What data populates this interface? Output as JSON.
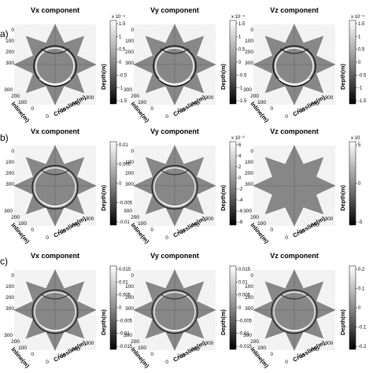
{
  "figure": {
    "rows": [
      {
        "label": "a)",
        "panels": [
          {
            "title": "Vx component",
            "colorbar": {
              "exponent": "x 10⁻⁴",
              "ticks": [
                "1.5",
                "1",
                "0.5",
                "0",
                "-0.5",
                "-1",
                "-1.5"
              ]
            }
          },
          {
            "title": "Vy component",
            "colorbar": {
              "exponent": "x 10⁻⁴",
              "ticks": [
                "1.5",
                "1",
                "0.5",
                "0",
                "-0.5",
                "-1",
                "-1.5"
              ]
            }
          },
          {
            "title": "Vz component",
            "colorbar": {
              "exponent": "x 10⁻⁴",
              "ticks": [
                "1.5",
                "1",
                "0.5",
                "0",
                "-0.5",
                "-1",
                "-1.5"
              ]
            }
          }
        ]
      },
      {
        "label": "b)",
        "panels": [
          {
            "title": "Vx component",
            "colorbar": {
              "exponent": "",
              "ticks": [
                "0.01",
                "0.005",
                "0",
                "-0.005",
                "-0.01"
              ]
            }
          },
          {
            "title": "Vy component",
            "colorbar": {
              "exponent": "x 10⁻³",
              "ticks": [
                "6",
                "4",
                "2",
                "0",
                "-2",
                "-4",
                "-6",
                "-8"
              ]
            }
          },
          {
            "title": "Vz component",
            "colorbar": {
              "exponent": "x 10",
              "ticks": [
                "5",
                "0",
                "-5"
              ]
            }
          }
        ]
      },
      {
        "label": "c)",
        "panels": [
          {
            "title": "Vx component",
            "colorbar": {
              "exponent": "",
              "ticks": [
                "0.015",
                "0.01",
                "0.005",
                "0",
                "-0.005",
                "-0.01",
                "-0.015"
              ]
            }
          },
          {
            "title": "Vy component",
            "colorbar": {
              "exponent": "",
              "ticks": [
                "0.015",
                "0.01",
                "0.005",
                "0",
                "-0.005",
                "-0.01",
                "-0.015"
              ]
            }
          },
          {
            "title": "Vz component",
            "colorbar": {
              "exponent": "",
              "ticks": [
                "0.2",
                "0.1",
                "0",
                "-0.1",
                "-0.2"
              ]
            }
          }
        ]
      }
    ],
    "axes": {
      "depth_label": "Depth(m)",
      "inline_label": "Inline(m)",
      "crossline_label": "Crossline(m)",
      "depth_ticks": [
        "0",
        "100",
        "200",
        "300"
      ],
      "inline_ticks": [
        "300",
        "200",
        "100",
        "0"
      ],
      "crossline_ticks": [
        "0",
        "100",
        "200",
        "300"
      ]
    }
  }
}
